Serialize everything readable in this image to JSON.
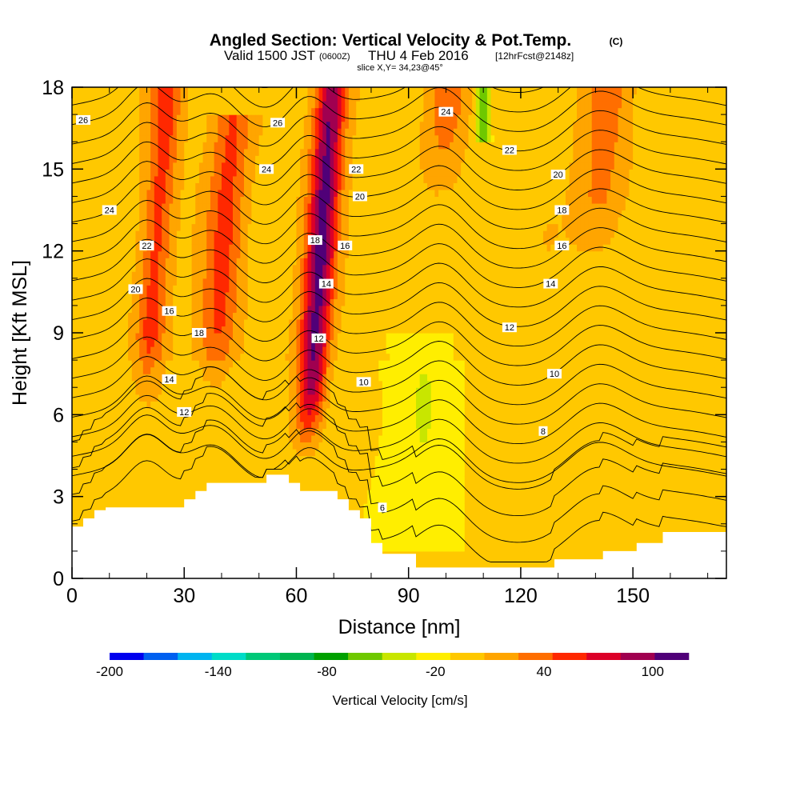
{
  "header": {
    "title": "Angled Section: Vertical Velocity & Pot.Temp.",
    "title_units": "(C)",
    "valid_prefix": "Valid 1500 JST",
    "valid_utc": "(0600Z)",
    "valid_date": "THU 4 Feb 2016",
    "forecast_info": "[12hrFcst@2148z]",
    "slice_info": "slice X,Y= 34,23@45°"
  },
  "chart_data": {
    "type": "heatmap",
    "title": "Angled Section: Vertical Velocity & Pot.Temp.",
    "xlabel": "Distance [nm]",
    "ylabel": "Height [Kft MSL]",
    "xlim": [
      0,
      175
    ],
    "ylim": [
      0,
      18
    ],
    "x_ticks": [
      0,
      30,
      60,
      90,
      120,
      150
    ],
    "x_tick_labels": [
      "0",
      "30",
      "60",
      "90",
      "120",
      "150"
    ],
    "y_ticks": [
      0,
      3,
      6,
      9,
      12,
      15,
      18
    ],
    "y_tick_labels": [
      "0",
      "3",
      "6",
      "9",
      "12",
      "15",
      "18"
    ],
    "colorbar": {
      "label": "Vertical Velocity [cm/s]",
      "tick_labels": [
        "-200",
        "-140",
        "-80",
        "-20",
        "40",
        "100"
      ],
      "tick_values": [
        -200,
        -140,
        -80,
        -20,
        40,
        100
      ],
      "levels": [
        -200,
        -180,
        -160,
        -140,
        -120,
        -100,
        -80,
        -60,
        -40,
        -20,
        0,
        20,
        40,
        60,
        80,
        100,
        120
      ],
      "colors": [
        "#0000ee",
        "#0060f0",
        "#00b4f0",
        "#00dcc8",
        "#00c878",
        "#00b450",
        "#00a000",
        "#6ec800",
        "#c8e600",
        "#ffee00",
        "#ffc800",
        "#ffa500",
        "#ff6e00",
        "#ff2800",
        "#dc0028",
        "#a00050",
        "#500078"
      ]
    },
    "terrain_profile": {
      "x": [
        0,
        3,
        3,
        6,
        6,
        9,
        9,
        30,
        30,
        33,
        33,
        36,
        36,
        39,
        39,
        52,
        52,
        58,
        58,
        61,
        61,
        71,
        71,
        74,
        74,
        77,
        77,
        80,
        80,
        83,
        83,
        92,
        92,
        129,
        129,
        142,
        142,
        151,
        151,
        158,
        158,
        175
      ],
      "height_kft": [
        1.9,
        1.9,
        2.2,
        2.2,
        2.5,
        2.5,
        2.6,
        2.6,
        2.9,
        2.9,
        3.2,
        3.2,
        3.5,
        3.5,
        3.5,
        3.5,
        3.8,
        3.8,
        3.5,
        3.5,
        3.2,
        3.2,
        2.9,
        2.9,
        2.5,
        2.5,
        2.2,
        2.2,
        1.3,
        1.3,
        0.9,
        0.9,
        0.4,
        0.4,
        0.7,
        0.7,
        1.0,
        1.0,
        1.3,
        1.3,
        1.7,
        1.7
      ]
    },
    "updraft_cores": [
      {
        "x_center": 20,
        "half_width": 4,
        "base_kft": 7,
        "top_kft": 18,
        "peak_cm_s": 55
      },
      {
        "x_center": 38,
        "half_width": 5,
        "base_kft": 7,
        "top_kft": 16,
        "peak_cm_s": 50
      },
      {
        "x_center": 63,
        "half_width": 4,
        "base_kft": 5,
        "top_kft": 18,
        "peak_cm_s": 110
      },
      {
        "x_center": 99,
        "half_width": 5,
        "base_kft": 15,
        "top_kft": 18,
        "peak_cm_s": 45
      },
      {
        "x_center": 140,
        "half_width": 6,
        "base_kft": 12,
        "top_kft": 18,
        "peak_cm_s": 35
      }
    ],
    "downdraft_zones": [
      {
        "x_center": 92,
        "half_width": 12,
        "base_kft": 1,
        "top_kft": 9,
        "value_cm_s": -10
      },
      {
        "x_center": 110,
        "half_width": 2,
        "base_kft": 16,
        "top_kft": 18,
        "value_cm_s": -60
      }
    ],
    "theta_contours": {
      "levels": [
        6,
        8,
        10,
        12,
        14,
        16,
        18,
        20,
        22,
        24,
        26
      ],
      "labels": [
        {
          "text": "26",
          "x": 3,
          "y": 16.8
        },
        {
          "text": "26",
          "x": 55,
          "y": 16.7
        },
        {
          "text": "24",
          "x": 100,
          "y": 17.1
        },
        {
          "text": "22",
          "x": 117,
          "y": 15.7
        },
        {
          "text": "24",
          "x": 52,
          "y": 15.0
        },
        {
          "text": "22",
          "x": 76,
          "y": 15.0
        },
        {
          "text": "20",
          "x": 130,
          "y": 14.8
        },
        {
          "text": "20",
          "x": 77,
          "y": 14.0
        },
        {
          "text": "24",
          "x": 10,
          "y": 13.5
        },
        {
          "text": "18",
          "x": 131,
          "y": 13.5
        },
        {
          "text": "22",
          "x": 20,
          "y": 12.2
        },
        {
          "text": "18",
          "x": 65,
          "y": 12.4
        },
        {
          "text": "16",
          "x": 73,
          "y": 12.2
        },
        {
          "text": "16",
          "x": 131,
          "y": 12.2
        },
        {
          "text": "14",
          "x": 128,
          "y": 10.8
        },
        {
          "text": "20",
          "x": 17,
          "y": 10.6
        },
        {
          "text": "14",
          "x": 68,
          "y": 10.8
        },
        {
          "text": "16",
          "x": 26,
          "y": 9.8
        },
        {
          "text": "18",
          "x": 34,
          "y": 9.0
        },
        {
          "text": "12",
          "x": 117,
          "y": 9.2
        },
        {
          "text": "12",
          "x": 66,
          "y": 8.8
        },
        {
          "text": "10",
          "x": 129,
          "y": 7.5
        },
        {
          "text": "14",
          "x": 26,
          "y": 7.3
        },
        {
          "text": "10",
          "x": 78,
          "y": 7.2
        },
        {
          "text": "12",
          "x": 30,
          "y": 6.1
        },
        {
          "text": "8",
          "x": 126,
          "y": 5.4
        },
        {
          "text": "6",
          "x": 83,
          "y": 2.6
        }
      ]
    },
    "grid": false
  }
}
